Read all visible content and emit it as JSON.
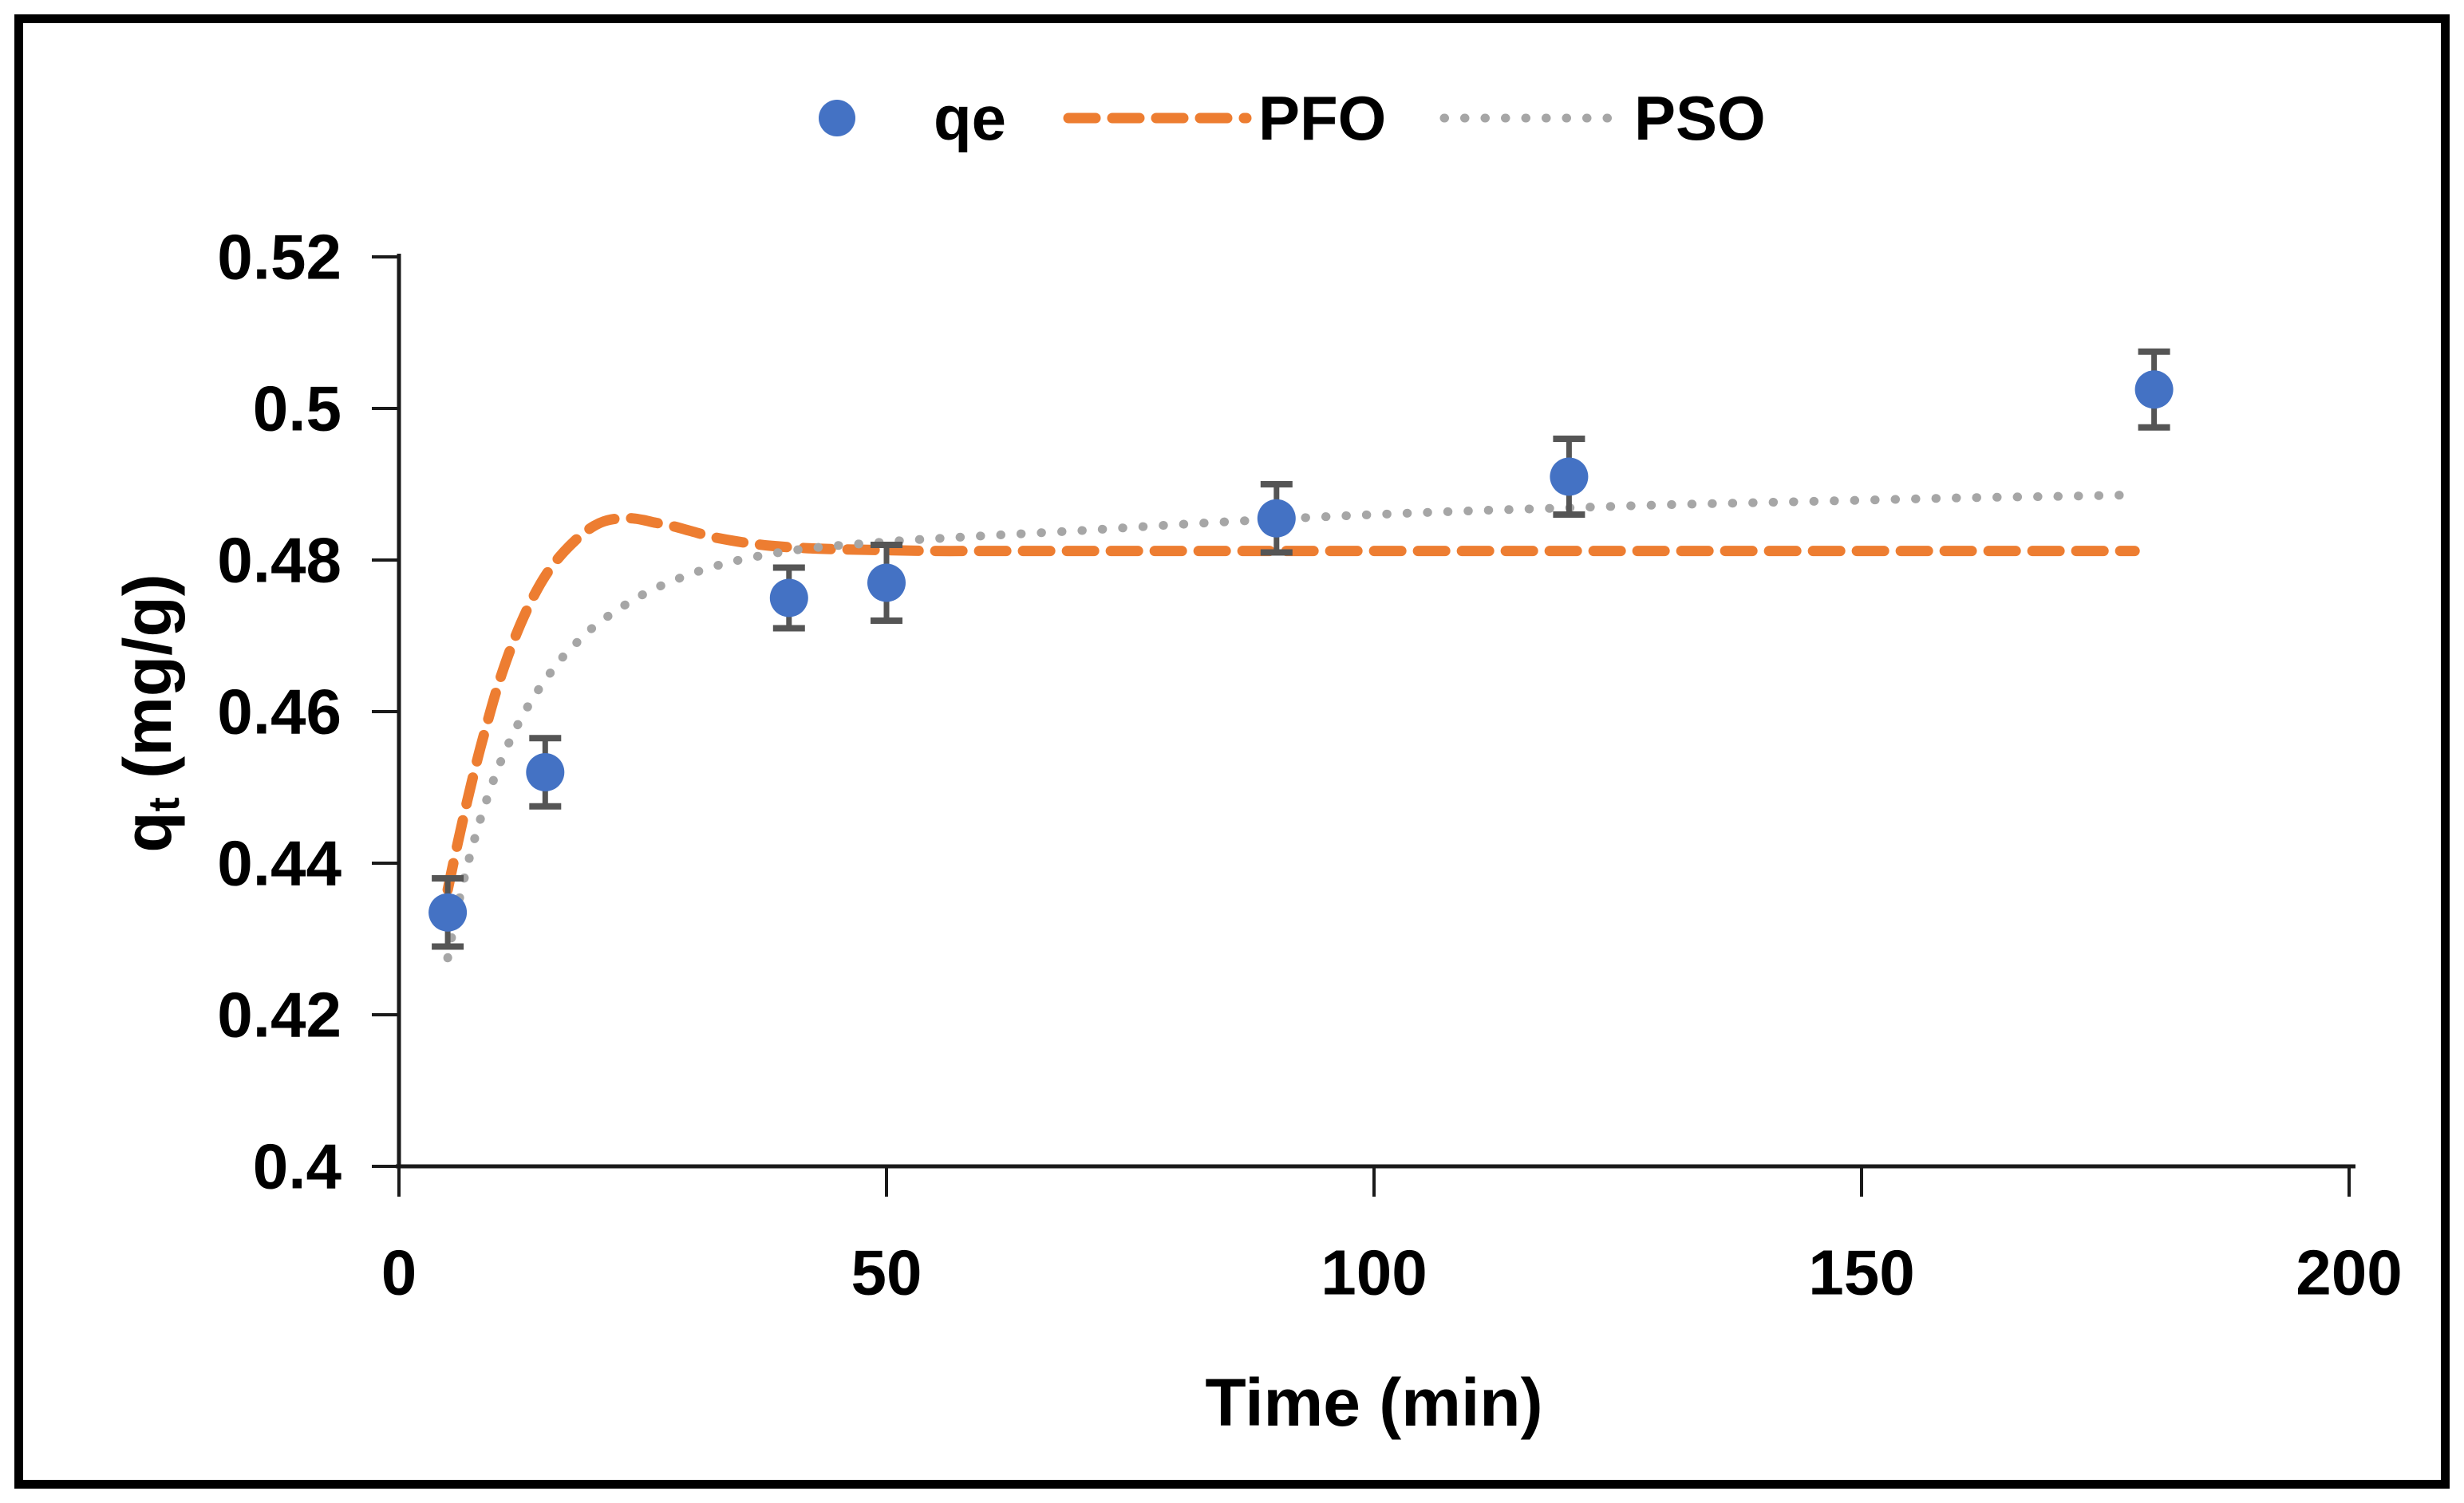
{
  "figure": {
    "background": "#ffffff",
    "border_color": "#000000",
    "axis_color": "#1a1a1a",
    "error_bar_color": "#555555"
  },
  "legend": {
    "position": "top-center",
    "items": [
      {
        "label": "qe",
        "type": "marker",
        "color": "#4472C4"
      },
      {
        "label": "PFO",
        "type": "dashed-line",
        "color": "#ED7D31"
      },
      {
        "label": "PSO",
        "type": "dotted-line",
        "color": "#A6A6A6"
      }
    ]
  },
  "chart_data": {
    "type": "scatter",
    "title": "",
    "xlabel": "Time (min)",
    "ylabel": "qt (mg/g)",
    "ylabel_parts": {
      "base": "q",
      "sub": "t",
      "rest": " (mg/g)"
    },
    "xlim": [
      0,
      200
    ],
    "ylim": [
      0.4,
      0.52
    ],
    "grid": false,
    "legend_position": "top-center",
    "xticks": [
      {
        "value": 0,
        "label": "0"
      },
      {
        "value": 50,
        "label": "50"
      },
      {
        "value": 100,
        "label": "100"
      },
      {
        "value": 150,
        "label": "150"
      },
      {
        "value": 200,
        "label": "200"
      }
    ],
    "yticks": [
      {
        "value": 0.4,
        "label": "0.4"
      },
      {
        "value": 0.42,
        "label": "0.42"
      },
      {
        "value": 0.44,
        "label": "0.44"
      },
      {
        "value": 0.46,
        "label": "0.46"
      },
      {
        "value": 0.48,
        "label": "0.48"
      },
      {
        "value": 0.5,
        "label": "0.5"
      },
      {
        "value": 0.52,
        "label": "0.52"
      }
    ],
    "series": [
      {
        "name": "qe",
        "type": "scatter",
        "color": "#4472C4",
        "marker": "circle",
        "marker_radius": 24,
        "error_bar_color": "#555555",
        "points": [
          {
            "t": 5,
            "q": 0.4335,
            "err": 0.0045
          },
          {
            "t": 15,
            "q": 0.452,
            "err": 0.0045
          },
          {
            "t": 40,
            "q": 0.475,
            "err": 0.004
          },
          {
            "t": 50,
            "q": 0.477,
            "err": 0.005
          },
          {
            "t": 90,
            "q": 0.4855,
            "err": 0.0045
          },
          {
            "t": 120,
            "q": 0.491,
            "err": 0.005
          },
          {
            "t": 180,
            "q": 0.5025,
            "err": 0.005
          }
        ]
      },
      {
        "name": "PFO",
        "type": "line",
        "line_style": "dashed",
        "color": "#ED7D31",
        "points": [
          [
            5,
            0.4365
          ],
          [
            6,
            0.4425
          ],
          [
            7,
            0.4482
          ],
          [
            8,
            0.4535
          ],
          [
            9,
            0.4583
          ],
          [
            10,
            0.4628
          ],
          [
            11,
            0.4667
          ],
          [
            12,
            0.4701
          ],
          [
            13,
            0.4731
          ],
          [
            14,
            0.4757
          ],
          [
            15,
            0.4779
          ],
          [
            16,
            0.4797
          ],
          [
            17,
            0.4812
          ],
          [
            18,
            0.4825
          ],
          [
            19,
            0.4836
          ],
          [
            20,
            0.4845
          ],
          [
            21,
            0.4851
          ],
          [
            22,
            0.4854
          ],
          [
            23,
            0.4855
          ],
          [
            24,
            0.4855
          ],
          [
            25,
            0.4853
          ],
          [
            26,
            0.485
          ],
          [
            28,
            0.4845
          ],
          [
            30,
            0.4838
          ],
          [
            32,
            0.4831
          ],
          [
            34,
            0.4826
          ],
          [
            36,
            0.4822
          ],
          [
            38,
            0.4819
          ],
          [
            40,
            0.4817
          ],
          [
            43,
            0.4815
          ],
          [
            46,
            0.4814
          ],
          [
            50,
            0.4813
          ],
          [
            55,
            0.4812
          ],
          [
            60,
            0.4812
          ],
          [
            70,
            0.4812
          ],
          [
            80,
            0.4812
          ],
          [
            90,
            0.4812
          ],
          [
            100,
            0.4812
          ],
          [
            110,
            0.4812
          ],
          [
            120,
            0.4812
          ],
          [
            130,
            0.4812
          ],
          [
            140,
            0.4812
          ],
          [
            150,
            0.4812
          ],
          [
            160,
            0.4812
          ],
          [
            170,
            0.4812
          ],
          [
            178,
            0.4812
          ]
        ]
      },
      {
        "name": "PSO",
        "type": "line",
        "line_style": "dotted",
        "color": "#A6A6A6",
        "points": [
          [
            5,
            0.4275
          ],
          [
            6,
            0.4341
          ],
          [
            7,
            0.4396
          ],
          [
            8,
            0.4443
          ],
          [
            9,
            0.4484
          ],
          [
            10,
            0.452
          ],
          [
            11,
            0.4551
          ],
          [
            12,
            0.4578
          ],
          [
            13,
            0.4602
          ],
          [
            14,
            0.4623
          ],
          [
            15,
            0.4642
          ],
          [
            16,
            0.4659
          ],
          [
            17,
            0.4675
          ],
          [
            18,
            0.4688
          ],
          [
            19,
            0.4701
          ],
          [
            20,
            0.4712
          ],
          [
            22,
            0.4731
          ],
          [
            24,
            0.4747
          ],
          [
            26,
            0.4761
          ],
          [
            28,
            0.4772
          ],
          [
            30,
            0.4782
          ],
          [
            33,
            0.4794
          ],
          [
            36,
            0.4803
          ],
          [
            40,
            0.4812
          ],
          [
            44,
            0.4818
          ],
          [
            48,
            0.4822
          ],
          [
            52,
            0.4826
          ],
          [
            56,
            0.4829
          ],
          [
            60,
            0.4832
          ],
          [
            70,
            0.4839
          ],
          [
            80,
            0.4847
          ],
          [
            90,
            0.4854
          ],
          [
            100,
            0.486
          ],
          [
            110,
            0.4865
          ],
          [
            120,
            0.4869
          ],
          [
            130,
            0.4873
          ],
          [
            140,
            0.4876
          ],
          [
            150,
            0.4879
          ],
          [
            160,
            0.4882
          ],
          [
            170,
            0.4884
          ],
          [
            178,
            0.4886
          ]
        ]
      }
    ]
  }
}
